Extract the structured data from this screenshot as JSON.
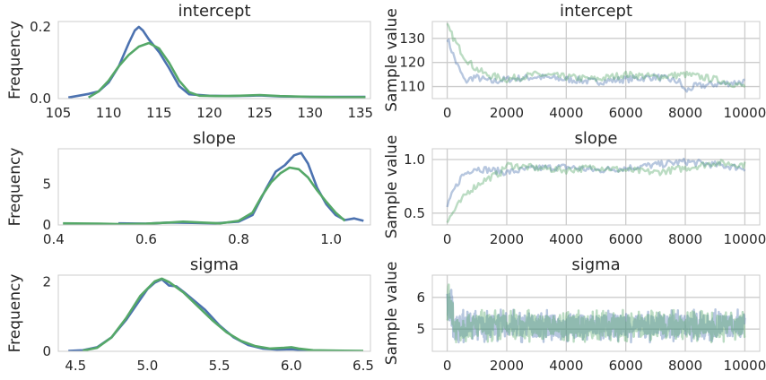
{
  "chart_data": [
    {
      "type": "line",
      "title": "intercept",
      "ylabel": "Frequency",
      "xlim": [
        105,
        136
      ],
      "ylim": [
        0,
        0.215
      ],
      "xticks": [
        105,
        110,
        115,
        120,
        125,
        130,
        135
      ],
      "yticks": [
        0.0,
        0.2
      ],
      "ytick_labels": [
        "0.0",
        "0.2"
      ],
      "grid": false,
      "series": [
        {
          "color": "#4c72b0",
          "x": [
            106,
            107,
            108,
            109,
            110,
            111,
            112,
            112.6,
            113,
            113.4,
            114,
            115,
            116,
            117,
            118,
            120,
            122,
            124,
            125,
            127,
            130,
            133,
            135.5
          ],
          "y": [
            0.003,
            0.008,
            0.013,
            0.02,
            0.045,
            0.09,
            0.155,
            0.19,
            0.2,
            0.19,
            0.165,
            0.13,
            0.085,
            0.035,
            0.012,
            0.008,
            0.007,
            0.008,
            0.009,
            0.006,
            0.005,
            0.005,
            0.005
          ]
        },
        {
          "color": "#55a868",
          "x": [
            108,
            109,
            110,
            111,
            112,
            113,
            114,
            115,
            116,
            117,
            118,
            119,
            121,
            123,
            125,
            127,
            130,
            133,
            135.5
          ],
          "y": [
            0.003,
            0.02,
            0.05,
            0.09,
            0.122,
            0.145,
            0.155,
            0.14,
            0.1,
            0.05,
            0.018,
            0.008,
            0.007,
            0.008,
            0.01,
            0.007,
            0.005,
            0.004,
            0.004
          ]
        }
      ]
    },
    {
      "type": "line",
      "title": "intercept",
      "ylabel": "Sample value",
      "xlim": [
        -500,
        10500
      ],
      "ylim": [
        105,
        137
      ],
      "xticks": [
        0,
        2000,
        4000,
        6000,
        8000,
        10000
      ],
      "yticks": [
        110,
        120,
        130
      ],
      "grid": true,
      "trace": {
        "n": 200,
        "start": [
          130,
          135
        ],
        "end_range": [
          105,
          117
        ]
      },
      "series": [
        {
          "color": "#4c72b0",
          "x": [
            0,
            300,
            600,
            900,
            1500,
            2000,
            3000,
            4000,
            5000,
            6000,
            7000,
            7800,
            8000,
            8300,
            9000,
            10000
          ],
          "y": [
            130,
            120,
            112,
            114,
            112,
            113,
            114,
            113,
            112,
            113,
            114,
            112,
            108,
            110,
            111,
            112
          ]
        },
        {
          "color": "#55a868",
          "x": [
            0,
            300,
            600,
            900,
            1300,
            2000,
            3000,
            4000,
            5000,
            6000,
            7000,
            8000,
            9000,
            10000
          ],
          "y": [
            135,
            128,
            122,
            118,
            115,
            113,
            115,
            114,
            113,
            115,
            114,
            115,
            113,
            110
          ]
        }
      ]
    },
    {
      "type": "line",
      "title": "slope",
      "ylabel": "Frequency",
      "xlim": [
        0.41,
        1.085
      ],
      "ylim": [
        0,
        9.3
      ],
      "xticks": [
        0.4,
        0.6,
        0.8,
        1.0
      ],
      "xtick_labels": [
        "0.4",
        "0.6",
        "0.8",
        "1.0"
      ],
      "yticks": [
        0,
        5
      ],
      "grid": false,
      "series": [
        {
          "color": "#4c72b0",
          "x": [
            0.54,
            0.6,
            0.65,
            0.7,
            0.75,
            0.8,
            0.83,
            0.86,
            0.88,
            0.9,
            0.92,
            0.935,
            0.95,
            0.97,
            0.99,
            1.01,
            1.03,
            1.05,
            1.07
          ],
          "y": [
            0.2,
            0.15,
            0.3,
            0.25,
            0.2,
            0.4,
            1.2,
            4.5,
            6.5,
            7.3,
            8.5,
            8.8,
            7.5,
            4.5,
            2.5,
            1.2,
            0.6,
            0.8,
            0.5
          ]
        },
        {
          "color": "#55a868",
          "x": [
            0.42,
            0.5,
            0.55,
            0.6,
            0.65,
            0.68,
            0.72,
            0.76,
            0.8,
            0.83,
            0.85,
            0.87,
            0.89,
            0.91,
            0.93,
            0.95,
            0.97,
            0.99,
            1.01,
            1.03
          ],
          "y": [
            0.2,
            0.15,
            0.1,
            0.15,
            0.3,
            0.4,
            0.3,
            0.2,
            0.5,
            1.5,
            3.5,
            5.2,
            6.3,
            7.0,
            6.8,
            5.8,
            4.2,
            2.8,
            1.5,
            0.5
          ]
        }
      ]
    },
    {
      "type": "line",
      "title": "slope",
      "ylabel": "Sample value",
      "xlim": [
        -500,
        10500
      ],
      "ylim": [
        0.39,
        1.1
      ],
      "xticks": [
        0,
        2000,
        4000,
        6000,
        8000,
        10000
      ],
      "yticks": [
        0.5,
        1.0
      ],
      "ytick_labels": [
        "0.5",
        "1.0"
      ],
      "grid": true,
      "trace": {
        "n": 200,
        "start": [
          0.55,
          0.42
        ]
      },
      "series": [
        {
          "color": "#4c72b0",
          "x": [
            0,
            200,
            500,
            900,
            1500,
            2000,
            3000,
            4000,
            5000,
            6000,
            7000,
            8000,
            9000,
            10000
          ],
          "y": [
            0.55,
            0.7,
            0.85,
            0.92,
            0.9,
            0.88,
            0.92,
            0.93,
            0.9,
            0.92,
            0.95,
            0.98,
            0.95,
            0.92
          ]
        },
        {
          "color": "#55a868",
          "x": [
            0,
            300,
            700,
            1200,
            1800,
            2000,
            3000,
            4000,
            5000,
            6000,
            7000,
            8000,
            9000,
            10000
          ],
          "y": [
            0.42,
            0.55,
            0.7,
            0.8,
            0.88,
            0.95,
            0.92,
            0.9,
            0.93,
            0.9,
            0.88,
            0.92,
            0.97,
            0.95
          ]
        }
      ]
    },
    {
      "type": "line",
      "title": "sigma",
      "ylabel": "Frequency",
      "xlim": [
        4.38,
        6.55
      ],
      "ylim": [
        0,
        2.2
      ],
      "xticks": [
        4.5,
        5.0,
        5.5,
        6.0,
        6.5
      ],
      "xtick_labels": [
        "4.5",
        "5.0",
        "5.5",
        "6.0",
        "6.5"
      ],
      "yticks": [
        0,
        2
      ],
      "grid": false,
      "series": [
        {
          "color": "#4c72b0",
          "x": [
            4.45,
            4.55,
            4.65,
            4.75,
            4.85,
            4.95,
            5.0,
            5.05,
            5.1,
            5.15,
            5.2,
            5.25,
            5.3,
            5.4,
            5.5,
            5.6,
            5.7,
            5.8,
            5.9,
            6.0,
            6.1,
            6.2,
            6.3
          ],
          "y": [
            0.01,
            0.03,
            0.12,
            0.4,
            0.9,
            1.5,
            1.8,
            1.98,
            2.08,
            1.9,
            1.88,
            1.72,
            1.55,
            1.2,
            0.75,
            0.4,
            0.18,
            0.08,
            0.05,
            0.06,
            0.03,
            0.01,
            0.01
          ]
        },
        {
          "color": "#55a868",
          "x": [
            4.55,
            4.65,
            4.75,
            4.85,
            4.95,
            5.05,
            5.1,
            5.15,
            5.25,
            5.35,
            5.45,
            5.55,
            5.65,
            5.75,
            5.85,
            5.95,
            6.0,
            6.05,
            6.15,
            6.3,
            6.5
          ],
          "y": [
            0.02,
            0.1,
            0.4,
            0.95,
            1.6,
            2.02,
            2.1,
            2.0,
            1.7,
            1.3,
            0.9,
            0.55,
            0.3,
            0.15,
            0.08,
            0.1,
            0.12,
            0.08,
            0.03,
            0.02,
            0.01
          ]
        }
      ]
    },
    {
      "type": "line",
      "title": "sigma",
      "ylabel": "Sample value",
      "xlim": [
        -500,
        10500
      ],
      "ylim": [
        4.3,
        6.7
      ],
      "xticks": [
        0,
        2000,
        4000,
        6000,
        8000,
        10000
      ],
      "yticks": [
        5,
        6
      ],
      "grid": true,
      "trace": {
        "n": 800,
        "center": 5.1,
        "spread": 0.35,
        "early_spike": 6.5
      },
      "series": [
        {
          "color": "#4c72b0"
        },
        {
          "color": "#55a868"
        }
      ]
    }
  ]
}
